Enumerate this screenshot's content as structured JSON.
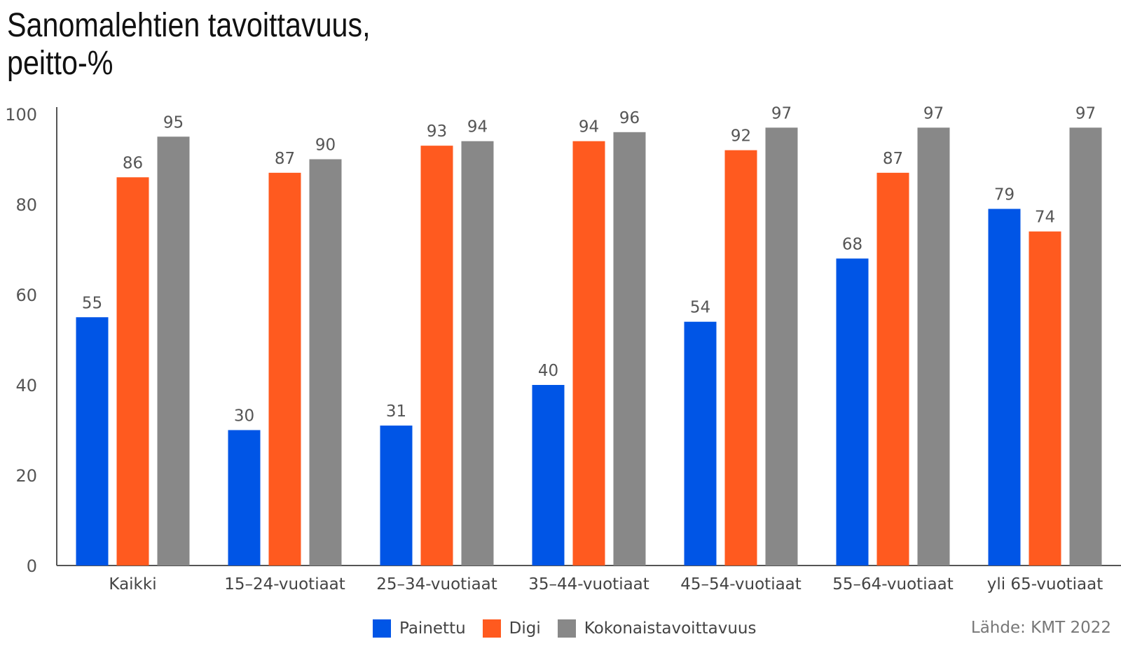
{
  "title_line1": "Sanomalehtien tavoittavuus,",
  "title_line2": "peitto-%",
  "source": "Lähde: KMT 2022",
  "chart_data": {
    "type": "bar",
    "title": "Sanomalehtien tavoittavuus, peitto-%",
    "categories": [
      "Kaikki",
      "15–24-vuotiaat",
      "25–34-vuotiaat",
      "35–44-vuotiaat",
      "45–54-vuotiaat",
      "55–64-vuotiaat",
      "yli 65-vuotiaat"
    ],
    "series": [
      {
        "name": "Painettu",
        "color": "#0055e6",
        "values": [
          55,
          30,
          31,
          40,
          54,
          68,
          79
        ]
      },
      {
        "name": "Digi",
        "color": "#ff5a1f",
        "values": [
          86,
          87,
          93,
          94,
          92,
          87,
          74
        ]
      },
      {
        "name": "Kokonaistavoittavuus",
        "color": "#888888",
        "values": [
          95,
          90,
          94,
          96,
          97,
          97,
          97
        ]
      }
    ],
    "ylim": [
      0,
      100
    ],
    "yticks": [
      "0",
      "20",
      "40",
      "60",
      "80",
      "100"
    ],
    "legend_position": "bottom",
    "grid": false
  }
}
